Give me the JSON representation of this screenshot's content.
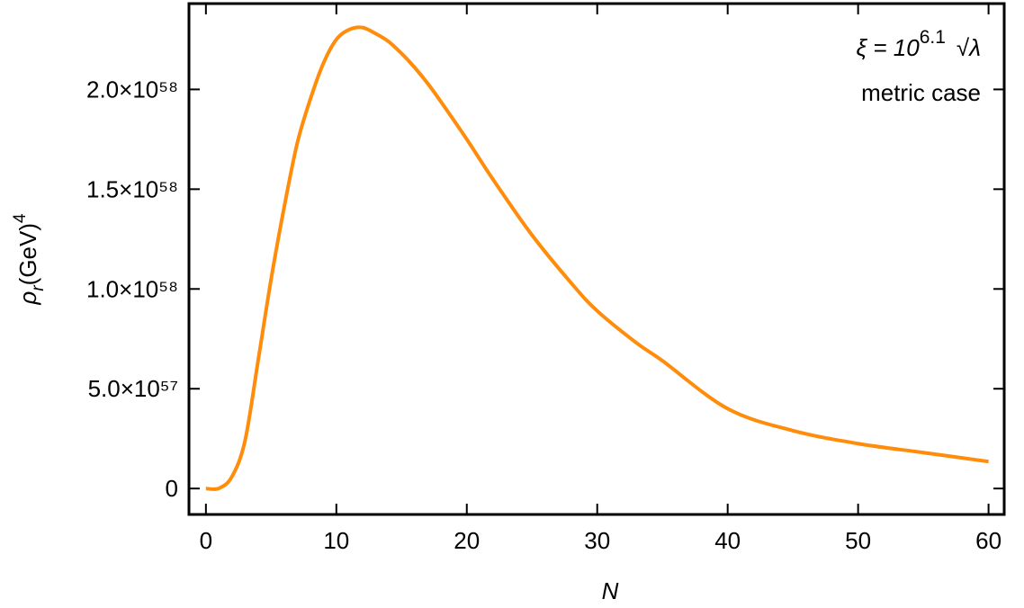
{
  "chart_data": {
    "type": "line",
    "xlabel": "N",
    "ylabel": {
      "symbol": "ρ",
      "subscript": "r",
      "unit": "(GeV)",
      "power": "4"
    },
    "annotation": {
      "base": "ξ = 10",
      "exponent": "6.1",
      "tail": "√λ",
      "line2": "metric case"
    },
    "color": "#ff8c0a",
    "x": [
      0,
      1,
      2,
      3,
      4,
      5,
      6,
      7,
      8,
      9,
      10,
      11,
      12,
      13,
      14,
      15,
      16,
      17,
      18,
      20,
      22,
      25,
      28,
      30,
      33,
      35,
      40,
      45,
      50,
      55,
      60
    ],
    "values": [
      0,
      1e+55,
      6e+56,
      2.4e+57,
      6.4e+57,
      1.05e+58,
      1.41e+58,
      1.73e+58,
      1.95e+58,
      2.13e+58,
      2.25e+58,
      2.3e+58,
      2.31e+58,
      2.28e+58,
      2.24e+58,
      2.18e+58,
      2.11e+58,
      2.03e+58,
      1.94e+58,
      1.75e+58,
      1.55e+58,
      1.27e+58,
      1.03e+58,
      8.9e+57,
      7.3e+57,
      6.4e+57,
      4e+57,
      2.9e+57,
      2.25e+57,
      1.8e+57,
      1.35e+57
    ],
    "xlim": [
      -1.3,
      61.2
    ],
    "ylim": [
      -1.3e+57,
      2.43e+58
    ],
    "xticks": [
      0,
      10,
      20,
      30,
      40,
      50,
      60
    ],
    "yticks": [
      0,
      {
        "value": 5e+57,
        "label": "5.0×10⁵⁷"
      },
      {
        "value": 1e+58,
        "label": "1.0×10⁵⁸"
      },
      {
        "value": 1.5e+58,
        "label": "1.5×10⁵⁸"
      },
      {
        "value": 2e+58,
        "label": "2.0×10⁵⁸"
      }
    ]
  }
}
